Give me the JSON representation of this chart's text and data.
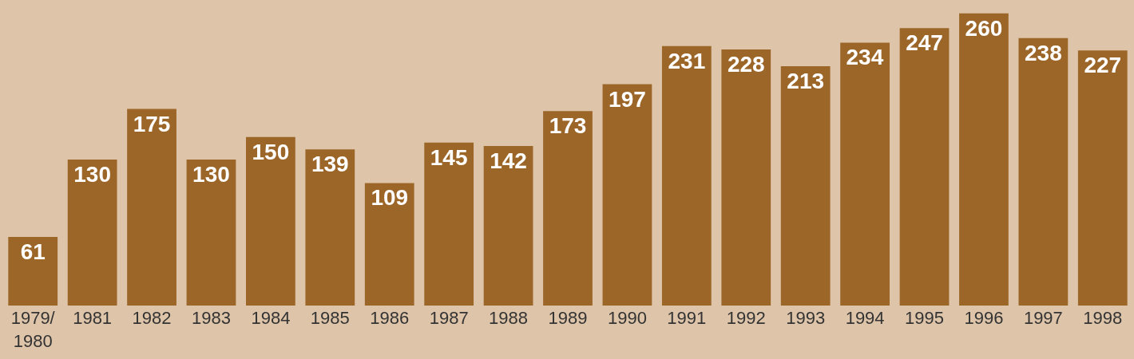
{
  "chart_data": {
    "type": "bar",
    "categories": [
      "1979/\n1980",
      "1981",
      "1982",
      "1983",
      "1984",
      "1985",
      "1986",
      "1987",
      "1988",
      "1989",
      "1990",
      "1991",
      "1992",
      "1993",
      "1994",
      "1995",
      "1996",
      "1997",
      "1998"
    ],
    "values": [
      61,
      130,
      175,
      130,
      150,
      139,
      109,
      145,
      142,
      173,
      197,
      231,
      228,
      213,
      234,
      247,
      260,
      238,
      227
    ],
    "color": "#9c6629",
    "data_labels": true,
    "grid": false
  }
}
